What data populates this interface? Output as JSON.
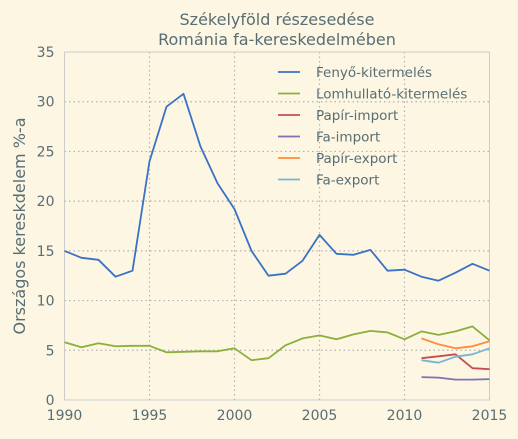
{
  "colors": {
    "background": "#fdf6e3",
    "text": "#586e75",
    "grid": "#b3b3b3",
    "axis": "#cccccc"
  },
  "chart_data": {
    "type": "line",
    "title_lines": [
      "Székelyföld részesedése",
      "Románia fa-kereskedelmében"
    ],
    "xlabel": "",
    "ylabel": "Országos kereskdelem %-a",
    "xlim": [
      1990,
      2015
    ],
    "ylim": [
      0,
      35
    ],
    "xticks": [
      1990,
      1995,
      2000,
      2005,
      2010,
      2015
    ],
    "yticks": [
      0,
      5,
      10,
      15,
      20,
      25,
      30,
      35
    ],
    "grid": true,
    "legend_position": "top-right",
    "series": [
      {
        "name": "Fenyő-kitermelés",
        "color": "#3a72c4",
        "x": [
          1990,
          1991,
          1992,
          1993,
          1994,
          1995,
          1996,
          1997,
          1998,
          1999,
          2000,
          2001,
          2002,
          2003,
          2004,
          2005,
          2006,
          2007,
          2008,
          2009,
          2010,
          2011,
          2012,
          2013,
          2014,
          2015
        ],
        "y": [
          15.0,
          14.3,
          14.1,
          12.4,
          13.0,
          24.0,
          29.5,
          30.8,
          25.5,
          21.8,
          19.2,
          15.0,
          12.5,
          12.7,
          14.0,
          16.6,
          14.7,
          14.6,
          15.1,
          13.0,
          13.1,
          12.4,
          12.0,
          12.8,
          13.7,
          13.0
        ]
      },
      {
        "name": "Lomhullató-kitermelés",
        "color": "#8ab03c",
        "x": [
          1990,
          1991,
          1992,
          1993,
          1994,
          1995,
          1996,
          1997,
          1998,
          1999,
          2000,
          2001,
          2002,
          2003,
          2004,
          2005,
          2006,
          2007,
          2008,
          2009,
          2010,
          2011,
          2012,
          2013,
          2014,
          2015
        ],
        "y": [
          5.8,
          5.3,
          5.7,
          5.4,
          5.45,
          5.45,
          4.8,
          4.85,
          4.9,
          4.9,
          5.2,
          4.0,
          4.2,
          5.5,
          6.2,
          6.5,
          6.1,
          6.6,
          6.95,
          6.8,
          6.1,
          6.9,
          6.55,
          6.9,
          7.4,
          6.0
        ]
      },
      {
        "name": "Papír-import",
        "color": "#c44e52",
        "x": [
          2011,
          2012,
          2013,
          2014,
          2015
        ],
        "y": [
          4.2,
          4.4,
          4.6,
          3.2,
          3.1
        ]
      },
      {
        "name": "Fa-import",
        "color": "#8172b2",
        "x": [
          2011,
          2012,
          2013,
          2014,
          2015
        ],
        "y": [
          2.3,
          2.25,
          2.05,
          2.05,
          2.1
        ]
      },
      {
        "name": "Papír-export",
        "color": "#ff8c3a",
        "x": [
          2011,
          2012,
          2013,
          2014,
          2015
        ],
        "y": [
          6.2,
          5.6,
          5.2,
          5.4,
          5.9
        ]
      },
      {
        "name": "Fa-export",
        "color": "#75b6d6",
        "x": [
          2011,
          2012,
          2013,
          2014,
          2015
        ],
        "y": [
          4.0,
          3.75,
          4.35,
          4.6,
          5.2
        ]
      }
    ]
  }
}
